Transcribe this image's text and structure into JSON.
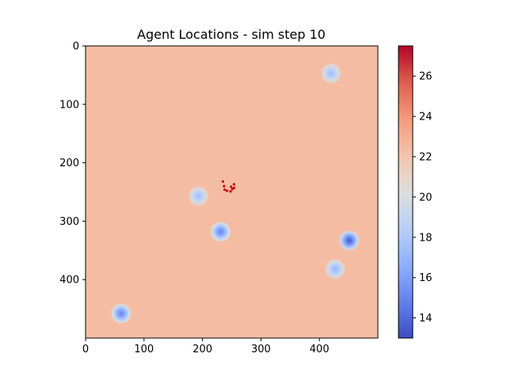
{
  "chart_data": {
    "type": "heatmap",
    "title": "Agent Locations - sim step 10",
    "xlabel": "",
    "ylabel": "",
    "xlim": [
      0,
      500
    ],
    "ylim": [
      500,
      0
    ],
    "x_ticks": [
      "0",
      "100",
      "200",
      "300",
      "400"
    ],
    "y_ticks": [
      "0",
      "100",
      "200",
      "300",
      "400"
    ],
    "background_value": 22.4,
    "colorbar": {
      "colormap": "coolwarm",
      "range": [
        13,
        27.5
      ],
      "ticks": [
        "14",
        "16",
        "18",
        "20",
        "22",
        "24",
        "26"
      ]
    },
    "cold_spots": [
      {
        "x": 420,
        "y": 47,
        "min_value": 17.5
      },
      {
        "x": 193,
        "y": 257,
        "min_value": 17.5
      },
      {
        "x": 231,
        "y": 318,
        "min_value": 15.0
      },
      {
        "x": 451,
        "y": 333,
        "min_value": 13.5
      },
      {
        "x": 427,
        "y": 382,
        "min_value": 17.0
      },
      {
        "x": 61,
        "y": 458,
        "min_value": 15.0
      }
    ],
    "agents": {
      "color": "#cc0000",
      "points": [
        {
          "x": 235,
          "y": 232
        },
        {
          "x": 237,
          "y": 240
        },
        {
          "x": 238,
          "y": 246
        },
        {
          "x": 242,
          "y": 248
        },
        {
          "x": 249,
          "y": 241
        },
        {
          "x": 254,
          "y": 237
        },
        {
          "x": 251,
          "y": 245
        },
        {
          "x": 248,
          "y": 249
        },
        {
          "x": 254,
          "y": 243
        }
      ]
    }
  }
}
